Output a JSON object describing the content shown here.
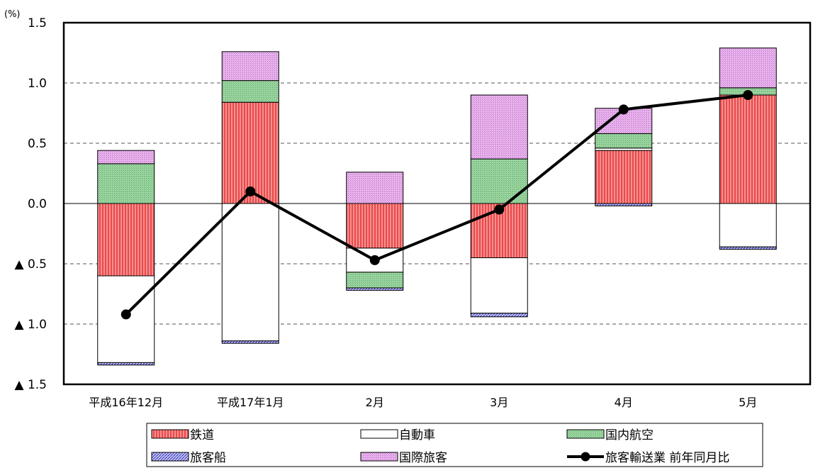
{
  "chart_data": {
    "type": "bar",
    "stacked": true,
    "unit_label": "(%)",
    "categories": [
      "平成16年12月",
      "平成17年1月",
      "2月",
      "3月",
      "4月",
      "5月"
    ],
    "ylim": [
      -1.5,
      1.5
    ],
    "y_ticks": [
      {
        "value": 1.5,
        "label": "1.5"
      },
      {
        "value": 1.0,
        "label": "1.0"
      },
      {
        "value": 0.5,
        "label": "0.5"
      },
      {
        "value": 0.0,
        "label": "0.0"
      },
      {
        "value": -0.5,
        "label": "▲ 0.5"
      },
      {
        "value": -1.0,
        "label": "▲ 1.0"
      },
      {
        "value": -1.5,
        "label": "▲ 1.5"
      }
    ],
    "grid": "dashed horizontal",
    "legend_position": "bottom",
    "series": [
      {
        "name": "鉄道",
        "color": "#f26b6b",
        "pattern": "vertical-lines",
        "values": [
          -0.6,
          0.84,
          -0.37,
          -0.45,
          0.44,
          0.9
        ]
      },
      {
        "name": "自動車",
        "color": "#ffffff",
        "pattern": "solid",
        "values": [
          -0.72,
          -1.14,
          -0.2,
          -0.46,
          0.02,
          -0.36
        ]
      },
      {
        "name": "国内航空",
        "color": "#8fce96",
        "pattern": "dots",
        "values": [
          0.33,
          0.18,
          -0.13,
          0.37,
          0.12,
          0.06
        ]
      },
      {
        "name": "旅客船",
        "color": "#6f6fe0",
        "pattern": "diagonal",
        "values": [
          -0.02,
          -0.02,
          -0.02,
          -0.03,
          -0.02,
          -0.02
        ]
      },
      {
        "name": "国際旅客",
        "color": "#e2a0e8",
        "pattern": "dots",
        "values": [
          0.11,
          0.24,
          0.26,
          0.53,
          0.21,
          0.33
        ]
      }
    ],
    "line_series": {
      "name": "旅客輸送業 前年同月比",
      "color": "#000000",
      "values": [
        -0.92,
        0.1,
        -0.47,
        -0.05,
        0.78,
        0.9
      ]
    }
  }
}
